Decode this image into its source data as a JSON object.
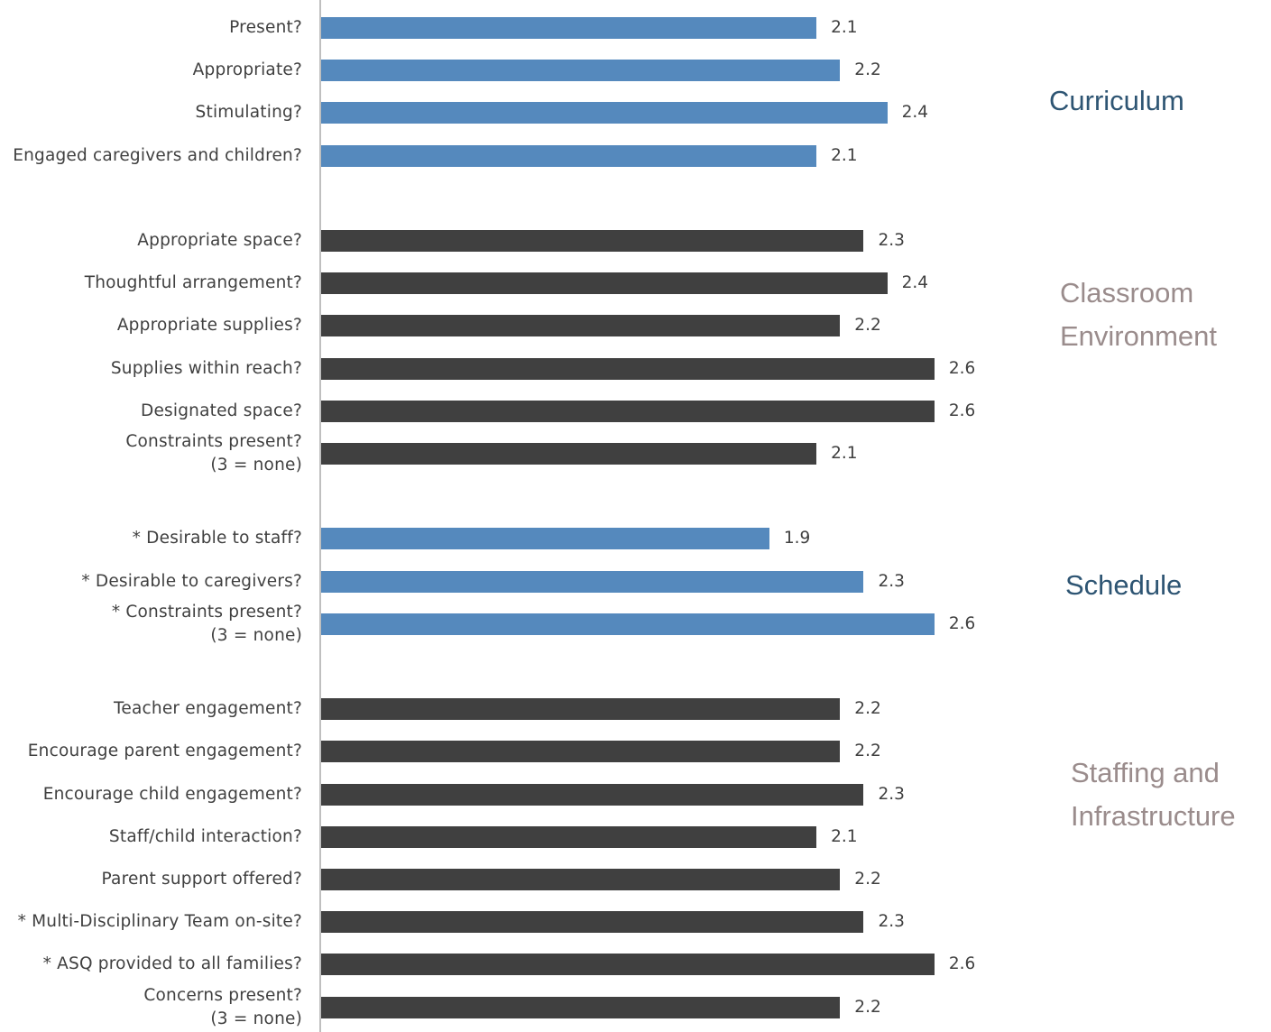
{
  "chart_data": {
    "type": "bar",
    "orientation": "horizontal",
    "xlim": [
      0,
      3
    ],
    "grid": false,
    "legend": "none",
    "colors": {
      "blue": "#5589bd",
      "dark": "#404040",
      "section_blue": "#2e5573",
      "section_gray": "#9a8c8c",
      "label_text": "#404040"
    },
    "groups": [
      {
        "name": "Curriculum",
        "color_key": "blue",
        "label_color_key": "section_blue",
        "items": [
          {
            "label": "Present?",
            "value": 2.1
          },
          {
            "label": "Appropriate?",
            "value": 2.2
          },
          {
            "label": "Stimulating?",
            "value": 2.4
          },
          {
            "label": "Engaged caregivers and children?",
            "value": 2.1
          }
        ]
      },
      {
        "name": "Classroom\nEnvironment",
        "color_key": "dark",
        "label_color_key": "section_gray",
        "items": [
          {
            "label": "Appropriate space?",
            "value": 2.3
          },
          {
            "label": "Thoughtful arrangement?",
            "value": 2.4
          },
          {
            "label": "Appropriate supplies?",
            "value": 2.2
          },
          {
            "label": "Supplies within reach?",
            "value": 2.6
          },
          {
            "label": "Designated space?",
            "value": 2.6
          },
          {
            "label": "Constraints present?\n(3 = none)",
            "value": 2.1
          }
        ]
      },
      {
        "name": "Schedule",
        "color_key": "blue",
        "label_color_key": "section_blue",
        "items": [
          {
            "label": "* Desirable to staff?",
            "value": 1.9
          },
          {
            "label": "* Desirable to caregivers?",
            "value": 2.3
          },
          {
            "label": "* Constraints present?\n(3 = none)",
            "value": 2.6
          }
        ]
      },
      {
        "name": "Staffing and\nInfrastructure",
        "color_key": "dark",
        "label_color_key": "section_gray",
        "items": [
          {
            "label": "Teacher engagement?",
            "value": 2.2
          },
          {
            "label": "Encourage parent engagement?",
            "value": 2.2
          },
          {
            "label": "Encourage child engagement?",
            "value": 2.3
          },
          {
            "label": "Staff/child interaction?",
            "value": 2.1
          },
          {
            "label": "Parent support offered?",
            "value": 2.2
          },
          {
            "label": "* Multi-Disciplinary Team on-site?",
            "value": 2.3
          },
          {
            "label": "* ASQ provided to all families?",
            "value": 2.6
          },
          {
            "label": "Concerns present?\n(3 = none)",
            "value": 2.2
          }
        ]
      }
    ]
  }
}
